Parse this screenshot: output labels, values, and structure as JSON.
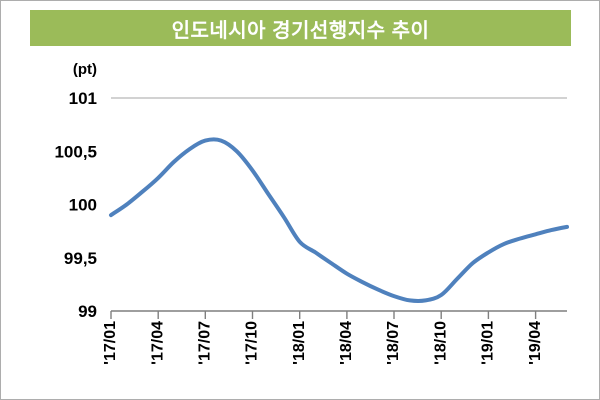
{
  "title": "인도네시아 경기선행지수 추이",
  "unit_label": "(pt)",
  "colors": {
    "header_bg": "#9bbb59",
    "line": "#4f81bd",
    "gridline": "#a6a6a6",
    "axis": "#7f7f7f",
    "text": "#000000",
    "title_text": "#ffffff"
  },
  "chart_data": {
    "type": "line",
    "title": "인도네시아 경기선행지수 추이",
    "ylabel": "(pt)",
    "xlabel": "",
    "ylim": [
      99,
      101
    ],
    "grid": "top-border-and-bottom-axis-only",
    "legend": "none",
    "x": [
      "'17/01",
      "'17/02",
      "'17/03",
      "'17/04",
      "'17/05",
      "'17/06",
      "'17/07",
      "'17/08",
      "'17/09",
      "'17/10",
      "'17/11",
      "'17/12",
      "'18/01",
      "'18/02",
      "'18/03",
      "'18/04",
      "'18/05",
      "'18/06",
      "'18/07",
      "'18/08",
      "'18/09",
      "'18/10",
      "'18/11",
      "'18/12",
      "'19/01",
      "'19/02",
      "'19/03",
      "'19/04",
      "'19/05",
      "'19/06"
    ],
    "values": [
      99.9,
      100.0,
      100.12,
      100.25,
      100.4,
      100.52,
      100.6,
      100.6,
      100.5,
      100.32,
      100.1,
      99.88,
      99.65,
      99.55,
      99.45,
      99.35,
      99.27,
      99.2,
      99.14,
      99.1,
      99.1,
      99.15,
      99.3,
      99.45,
      99.55,
      99.63,
      99.68,
      99.72,
      99.76,
      99.79
    ],
    "tick_labels": [
      "'17/01",
      "'17/04",
      "'17/07",
      "'17/10",
      "'18/01",
      "'18/04",
      "'18/07",
      "'18/10",
      "'19/01",
      "'19/04"
    ],
    "tick_every": 3,
    "y_ticks": [
      {
        "v": 101,
        "label": "101"
      },
      {
        "v": 100.5,
        "label": "100,5"
      },
      {
        "v": 100,
        "label": "100"
      },
      {
        "v": 99.5,
        "label": "99,5"
      },
      {
        "v": 99,
        "label": "99"
      }
    ]
  }
}
